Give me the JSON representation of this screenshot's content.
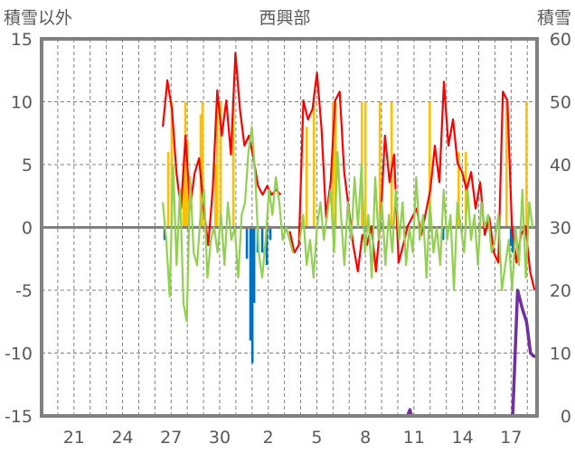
{
  "chart_data": {
    "type": "line",
    "title": "西興部",
    "ylabel_left": "積雪以外",
    "ylabel_right": "積雪",
    "ylim_left": [
      -15,
      15
    ],
    "ylim_right": [
      0,
      60
    ],
    "yticks_left": [
      15,
      10,
      5,
      0,
      -5,
      -10,
      -15
    ],
    "yticks_right": [
      60,
      50,
      40,
      30,
      20,
      10,
      0
    ],
    "xlim_days": [
      0,
      30.6
    ],
    "xticks": [
      {
        "day": 2,
        "label": "21"
      },
      {
        "day": 5,
        "label": "24"
      },
      {
        "day": 8,
        "label": "27"
      },
      {
        "day": 11,
        "label": "30"
      },
      {
        "day": 14,
        "label": "2"
      },
      {
        "day": 17,
        "label": "5"
      },
      {
        "day": 20,
        "label": "8"
      },
      {
        "day": 23,
        "label": "11"
      },
      {
        "day": 26,
        "label": "14"
      },
      {
        "day": 29,
        "label": "17"
      }
    ],
    "grid": true,
    "colors": {
      "red": "#ff0000",
      "green": "#92d050",
      "orange": "#ffc000",
      "blue": "#0070c0",
      "purple": "#7030a0",
      "axis": "#808080"
    },
    "series": [
      {
        "name": "red",
        "axis": "left",
        "start": 7.49,
        "step": 0.28,
        "values": [
          8.0,
          11.7,
          9.4,
          4.3,
          1.5,
          7.3,
          1.5,
          4.3,
          5.5,
          1.5,
          -1.4,
          3.0,
          10.9,
          7.3,
          10.1,
          5.8,
          13.9,
          9.4,
          6.5,
          7.3,
          5.5,
          3.3,
          2.6,
          3.3,
          2.6,
          3.0,
          2.6,
          null,
          -0.3,
          -2.0,
          -1.4,
          10.1,
          8.6,
          9.4,
          12.3,
          7.9,
          0.8,
          3.6,
          10.1,
          10.8,
          4.4,
          1.5,
          -1.4,
          -3.5,
          -0.6,
          -1.4,
          0.1,
          -3.5,
          0.4,
          7.3,
          3.6,
          5.8,
          -2.8,
          -1.4,
          0.1,
          0.8,
          1.5,
          -0.6,
          1.2,
          3.0,
          6.5,
          3.6,
          11.6,
          6.5,
          8.6,
          5.1,
          4.4,
          3.0,
          4.4,
          1.5,
          3.6,
          -0.6,
          0.8,
          -2.0,
          -2.8,
          10.8,
          10.1,
          0.1,
          -2.8,
          -0.6,
          0.1,
          -3.5,
          -5.0
        ]
      },
      {
        "name": "green",
        "axis": "left",
        "start": 7.49,
        "step": 0.2115,
        "values": [
          2,
          -1,
          -5.5,
          5,
          -3,
          3,
          -6,
          -7.5,
          4,
          -2,
          -3,
          1,
          3,
          -4,
          -1,
          0,
          -2,
          1,
          -3,
          2,
          -1,
          0,
          -4,
          1,
          2,
          6,
          8,
          4,
          -2,
          -4,
          -1,
          3,
          1,
          4,
          2,
          -1,
          0,
          -1,
          -2,
          null,
          -1,
          1,
          -3,
          -1,
          -4,
          0,
          2,
          -1,
          1,
          3,
          -2,
          6,
          1,
          -3,
          2,
          -1,
          4,
          0,
          5,
          -2,
          1,
          -4,
          4,
          -1,
          2,
          -3,
          1,
          -2,
          3,
          -1,
          2,
          -3,
          0,
          -2,
          4,
          -1,
          1,
          -4,
          2,
          -2,
          0,
          -3,
          3,
          -1,
          1,
          -5,
          2,
          0,
          -2,
          3,
          -1,
          1,
          -3,
          2,
          0,
          1,
          -2,
          -1,
          1,
          -5,
          -3,
          -1,
          -5,
          0,
          -3,
          3,
          -4,
          2,
          0
        ]
      },
      {
        "name": "orange",
        "type": "bar",
        "axis": "left",
        "days": [
          7.82,
          8.04,
          8.77,
          8.88,
          9.0,
          9.83,
          9.94,
          10.73,
          10.84,
          11.06,
          11.84,
          16.37,
          16.82,
          17.99,
          18.16,
          19.78,
          20.0,
          20.89,
          21.62,
          23.97,
          25.76,
          26.2,
          28.72,
          29.95
        ],
        "values": [
          6,
          10,
          5,
          10,
          7,
          9,
          10,
          5,
          10,
          10,
          10,
          8,
          10,
          10,
          10,
          10,
          10,
          10,
          10,
          10,
          6,
          6,
          10,
          10
        ]
      },
      {
        "name": "blue",
        "type": "bar",
        "axis": "left",
        "days": [
          7.6,
          12.68,
          12.9,
          13.02,
          13.13,
          13.35,
          13.63,
          13.91,
          14.13,
          24.8,
          28.99,
          29.11
        ],
        "values": [
          -1,
          -2.5,
          -9,
          -10.8,
          -6,
          -2,
          -2,
          -3,
          -1,
          -1,
          -1.5,
          -2
        ]
      },
      {
        "name": "purple",
        "axis": "right",
        "x": [
          8.6,
          22.6,
          22.75,
          22.85,
          28.99,
          29.1,
          29.4,
          29.7,
          29.95,
          30.2,
          30.4,
          30.6
        ],
        "values": [
          0,
          0,
          1,
          0,
          0,
          0,
          20,
          17,
          15,
          10,
          9.5,
          9.5
        ]
      }
    ]
  }
}
